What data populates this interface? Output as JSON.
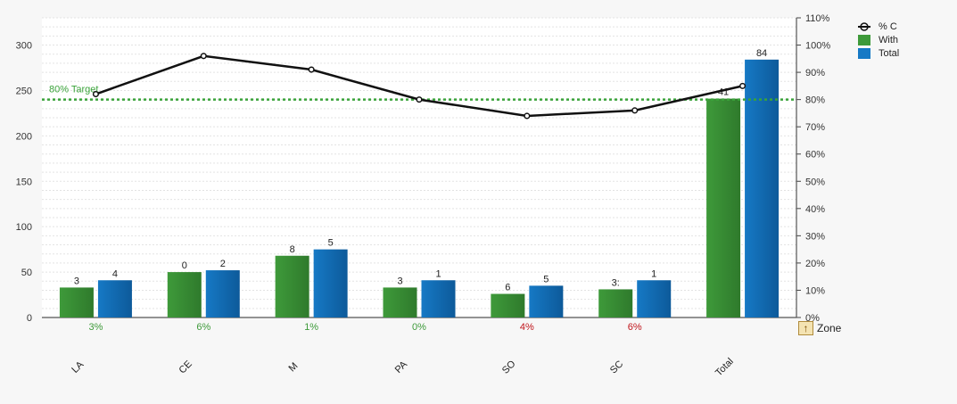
{
  "chart_data": {
    "type": "bar",
    "categories": [
      "LA",
      "CE",
      "M",
      "PA",
      "SO",
      "SC",
      "Total"
    ],
    "series": [
      {
        "name": "With",
        "values": [
          33,
          50,
          68,
          33,
          26,
          31,
          241
        ],
        "color": "#3e9a3a"
      },
      {
        "name": "Total",
        "values": [
          41,
          52,
          75,
          41,
          35,
          41,
          284
        ],
        "color": "#1679c5"
      }
    ],
    "line_series": {
      "name": "% C",
      "values": [
        82,
        96,
        91,
        80,
        74,
        76,
        85
      ],
      "color": "#111111"
    },
    "value_labels": {
      "With": [
        "3",
        "0",
        "8",
        "3",
        "6",
        "3:",
        "41"
      ],
      "Total": [
        "4",
        "2",
        "5",
        "1",
        "5",
        "1",
        "84"
      ]
    },
    "percent_labels": [
      {
        "text": "3%",
        "status": "good"
      },
      {
        "text": "6%",
        "status": "good"
      },
      {
        "text": "1%",
        "status": "good"
      },
      {
        "text": "0%",
        "status": "good"
      },
      {
        "text": "4%",
        "status": "bad"
      },
      {
        "text": "6%",
        "status": "bad"
      },
      {
        "text": "",
        "status": "good"
      }
    ],
    "status_colors": {
      "good": "#3e9a3a",
      "bad": "#c0151b"
    },
    "target": {
      "label": "80% Target",
      "value": 80,
      "color": "#3aa33a"
    },
    "left_axis": {
      "ticks": [
        "0",
        "50",
        "100",
        "150",
        "200",
        "250",
        "300"
      ],
      "ylim": [
        0,
        330
      ]
    },
    "right_axis": {
      "ticks": [
        "0%",
        "10%",
        "20%",
        "30%",
        "40%",
        "50%",
        "60%",
        "70%",
        "80%",
        "90%",
        "100%",
        "110%"
      ],
      "ylim": [
        0,
        110
      ]
    },
    "grid": true,
    "legend_position": "top-right"
  },
  "zone_button": {
    "icon": "sort-up-icon",
    "label": "Zone"
  }
}
